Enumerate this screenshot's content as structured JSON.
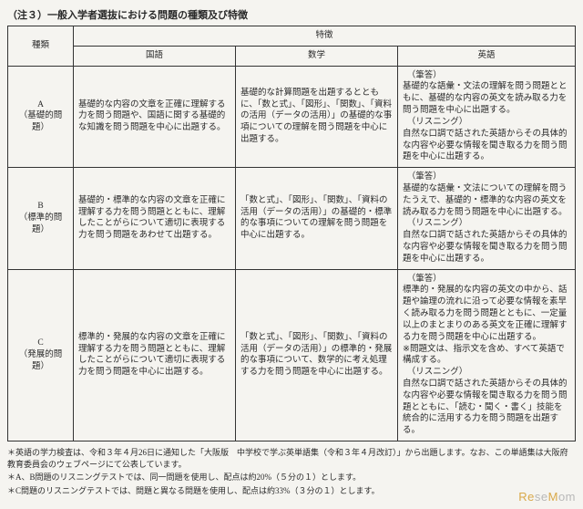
{
  "title": "（注３）一般入学者選抜における問題の種類及び特徴",
  "header": {
    "type": "種類",
    "features": "特徴",
    "kokugo": "国語",
    "sugaku": "数学",
    "eigo": "英語"
  },
  "rows": [
    {
      "type_label": "A",
      "type_sub": "（基礎的問題）",
      "kokugo": "基礎的な内容の文章を正確に理解する力を問う問題や、国語に関する基礎的な知識を問う問題を中心に出題する。",
      "sugaku": "基礎的な計算問題を出題するとともに、「数と式」、「図形」、「関数」、「資料の活用（データの活用）」の基礎的な事項についての理解を問う問題を中心に出題する。",
      "eigo": "　（筆答）\n基礎的な語彙・文法の理解を問う問題とともに、基礎的な内容の英文を読み取る力を問う問題を中心に出題する。\n　（リスニング）\n自然な口調で話された英語からその具体的な内容や必要な情報を聞き取る力を問う問題を中心に出題する。"
    },
    {
      "type_label": "B",
      "type_sub": "（標準的問題）",
      "kokugo": "基礎的・標準的な内容の文章を正確に理解する力を問う問題とともに、理解したことがらについて適切に表現する力を問う問題をあわせて出題する。",
      "sugaku": "「数と式」、「図形」、「関数」、「資料の活用（データの活用）」の基礎的・標準的な事項についての理解を問う問題を中心に出題する。",
      "eigo": "　（筆答）\n基礎的な語彙・文法についての理解を問うたうえで、基礎的・標準的な内容の英文を読み取る力を問う問題を中心に出題する。\n　（リスニング）\n自然な口調で話された英語からその具体的な内容や必要な情報を聞き取る力を問う問題を中心に出題する。"
    },
    {
      "type_label": "C",
      "type_sub": "（発展的問題）",
      "kokugo": "標準的・発展的な内容の文章を正確に理解する力を問う問題とともに、理解したことがらについて適切に表現する力を問う問題を中心に出題する。",
      "sugaku": "「数と式」、「図形」、「関数」、「資料の活用（データの活用）」の標準的・発展的な事項について、数学的に考え処理する力を問う問題を中心に出題する。",
      "eigo": "　（筆答）\n標準的・発展的な内容の英文の中から、話題や論理の流れに沿って必要な情報を素早く読み取る力を問う問題とともに、一定量以上のまとまりのある英文を正確に理解する力を問う問題を中心に出題する。\n※問題文は、指示文を含め、すべて英語で構成する。\n　（リスニング）\n自然な口調で話された英語からその具体的な内容や必要な情報を聞き取る力を問う問題とともに、「読む・聞く・書く」技能を統合的に活用する力を問う問題を出題する。"
    }
  ],
  "notes": [
    "＊英語の学力検査は、令和３年４月26日に通知した「大阪版　中学校で学ぶ英単語集（令和３年４月改訂）」から出題します。なお、この単語集は大阪府教育委員会のウェブページにて公表しています。",
    "＊A、B問題のリスニングテストでは、同一問題を使用し、配点は約20%（５分の１）とします。",
    "＊C問題のリスニングテストでは、問題と異なる問題を使用し、配点は約33%（３分の１）とします。"
  ],
  "watermark": "ReseMom"
}
